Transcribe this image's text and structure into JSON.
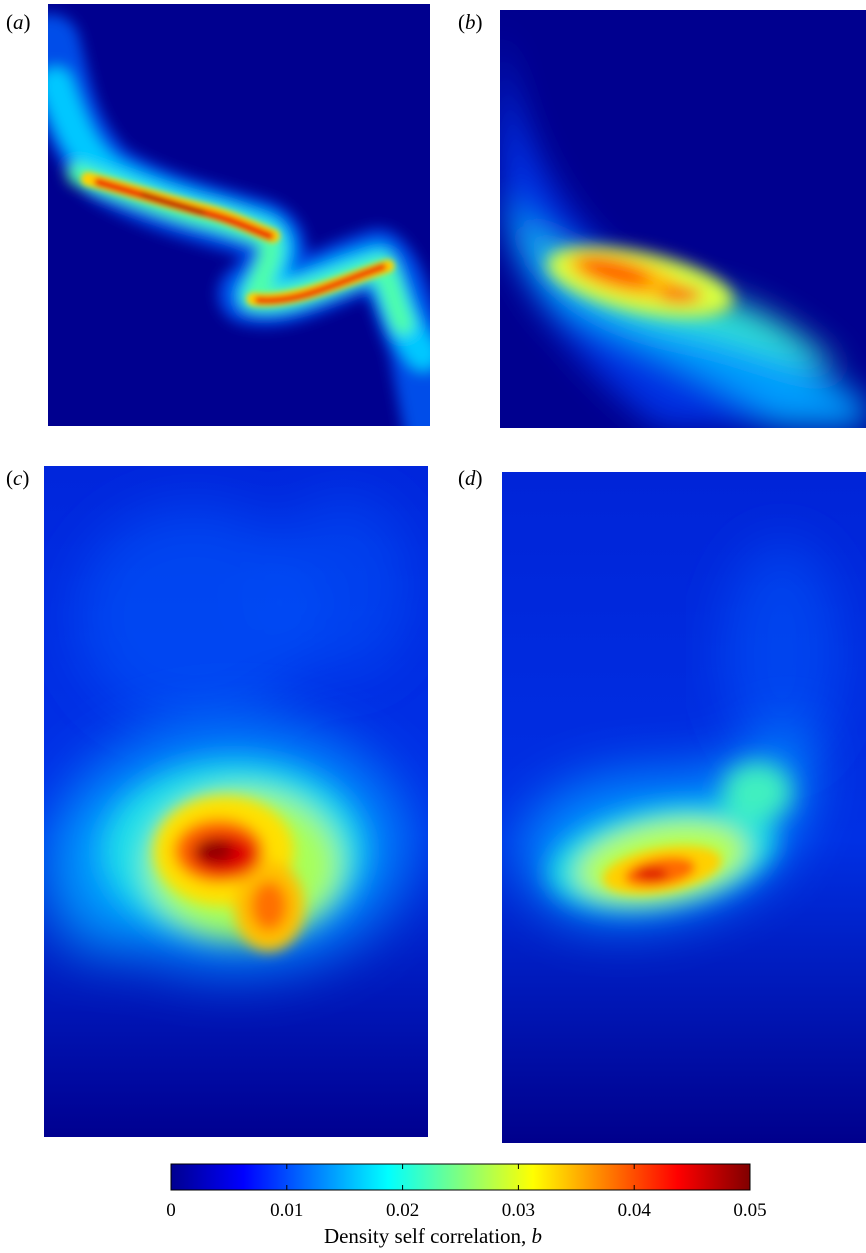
{
  "chart_data": [
    {
      "type": "heatmap",
      "panel_label": "a",
      "field": "density self correlation b",
      "structure": "narrow band from upper-left to lower-right with a double bend",
      "peak_value": 0.05
    },
    {
      "type": "heatmap",
      "panel_label": "b",
      "field": "density self correlation b",
      "structure": "wide band curving down from upper-left, spreading toward lower-right",
      "peak_value": 0.044
    },
    {
      "type": "heatmap",
      "panel_label": "c",
      "field": "density self correlation b",
      "structure": "broad blob in lower-middle, concentrated core left of centre",
      "peak_value": 0.05
    },
    {
      "type": "heatmap",
      "panel_label": "d",
      "field": "density self correlation b",
      "structure": "crescent-shaped blob in lower-middle with smaller core",
      "peak_value": 0.042
    }
  ],
  "colorbar": {
    "colormap": "jet",
    "range": [
      0,
      0.05
    ],
    "ticks": [
      0,
      0.01,
      0.02,
      0.03,
      0.04,
      0.05
    ],
    "tick_labels": [
      "0",
      "0.01",
      "0.02",
      "0.03",
      "0.04",
      "0.05"
    ],
    "label": "Density self correlation,",
    "label_symbol": "b"
  },
  "labels": {
    "a": "a",
    "b": "b",
    "c": "c",
    "d": "d"
  }
}
